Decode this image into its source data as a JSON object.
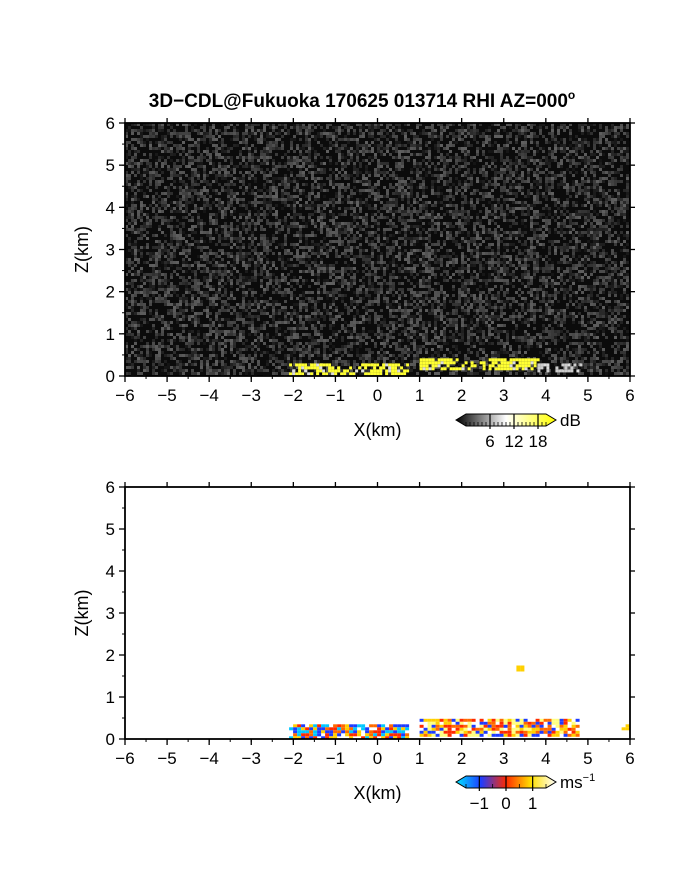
{
  "title": "3D−CDL@Fukuoka 170625 013714 RHI AZ=000",
  "title_superscript": "o",
  "chart_data": [
    {
      "type": "heatmap",
      "quantity": "reflectivity",
      "xlabel": "X(km)",
      "ylabel": "Z(km)",
      "xlim": [
        -6,
        6
      ],
      "ylim": [
        0,
        6
      ],
      "xticks": [
        "−6",
        "−5",
        "−4",
        "−3",
        "−2",
        "−1",
        "0",
        "1",
        "2",
        "3",
        "4",
        "5",
        "6"
      ],
      "yticks": [
        "0",
        "1",
        "2",
        "3",
        "4",
        "5",
        "6"
      ],
      "background": "noise (dark gray/black) over whole domain",
      "colorbar": {
        "label": "dB",
        "ticks": [
          "6",
          "12",
          "18"
        ],
        "range": [
          0,
          20
        ],
        "colors": [
          "#000000",
          "#ffffff",
          "#ffff00"
        ]
      },
      "echoes": [
        {
          "x_start": -2.1,
          "x_end": 0.7,
          "z_bottom": 0.08,
          "z_top": 0.3,
          "color": "#ffff33"
        },
        {
          "x_start": 1.0,
          "x_end": 3.8,
          "z_bottom": 0.15,
          "z_top": 0.42,
          "color": "#ffff33"
        },
        {
          "x_start": 3.8,
          "x_end": 4.8,
          "z_bottom": 0.1,
          "z_top": 0.3,
          "color": "#cccccc"
        }
      ]
    },
    {
      "type": "heatmap",
      "quantity": "doppler velocity",
      "xlabel": "X(km)",
      "ylabel": "Z(km)",
      "xlim": [
        -6,
        6
      ],
      "ylim": [
        0,
        6
      ],
      "xticks": [
        "−6",
        "−5",
        "−4",
        "−3",
        "−2",
        "−1",
        "0",
        "1",
        "2",
        "3",
        "4",
        "5",
        "6"
      ],
      "yticks": [
        "0",
        "1",
        "2",
        "3",
        "4",
        "5",
        "6"
      ],
      "background": "white",
      "colorbar": {
        "label": "ms",
        "label_superscript": "−1",
        "ticks": [
          "−1",
          "0",
          "1"
        ],
        "range": [
          -1.5,
          1.5
        ],
        "colors": [
          "#00e5ff",
          "#1e3cff",
          "#ff2a00",
          "#ffe000",
          "#ffffff"
        ]
      },
      "echoes": [
        {
          "x_start": -2.1,
          "x_end": 0.7,
          "z_bottom": 0.05,
          "z_top": 0.35,
          "mix": [
            "#ff6a00",
            "#ffd000",
            "#ff2a00",
            "#00c8ff",
            "#1e3cff"
          ]
        },
        {
          "x_start": 1.0,
          "x_end": 4.8,
          "z_bottom": 0.1,
          "z_top": 0.48,
          "mix": [
            "#ffd000",
            "#ff6a00",
            "#ff2a00",
            "#1e3cff",
            "#ffff80"
          ]
        },
        {
          "x_start": 3.3,
          "x_end": 3.45,
          "z_bottom": 1.65,
          "z_top": 1.75,
          "mix": [
            "#ffd000"
          ]
        },
        {
          "x_start": 5.8,
          "x_end": 5.9,
          "z_bottom": 0.25,
          "z_top": 0.35,
          "mix": [
            "#ffd000"
          ]
        }
      ]
    }
  ]
}
